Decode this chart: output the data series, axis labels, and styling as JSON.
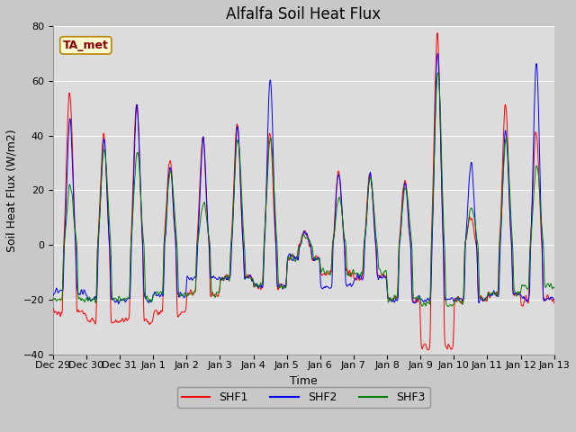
{
  "title": "Alfalfa Soil Heat Flux",
  "xlabel": "Time",
  "ylabel": "Soil Heat Flux (W/m2)",
  "ylim": [
    -40,
    80
  ],
  "yticks": [
    -40,
    -20,
    0,
    20,
    40,
    60,
    80
  ],
  "xtick_labels": [
    "Dec 29",
    "Dec 30",
    "Dec 31",
    "Jan 1",
    "Jan 2",
    "Jan 3",
    "Jan 4",
    "Jan 5",
    "Jan 6",
    "Jan 7",
    "Jan 8",
    "Jan 9",
    "Jan 10",
    "Jan 11",
    "Jan 12",
    "Jan 13"
  ],
  "legend_labels": [
    "SHF1",
    "SHF2",
    "SHF3"
  ],
  "line_colors": [
    "red",
    "blue",
    "green"
  ],
  "annotation_text": "TA_met",
  "annotation_color": "#8B0000",
  "annotation_bg": "#FFFACD",
  "annotation_border": "#B8860B",
  "plot_bg_color": "#DCDCDC",
  "fig_bg_color": "#C8C8C8",
  "grid_color": "white",
  "title_fontsize": 12,
  "label_fontsize": 9,
  "tick_fontsize": 8
}
